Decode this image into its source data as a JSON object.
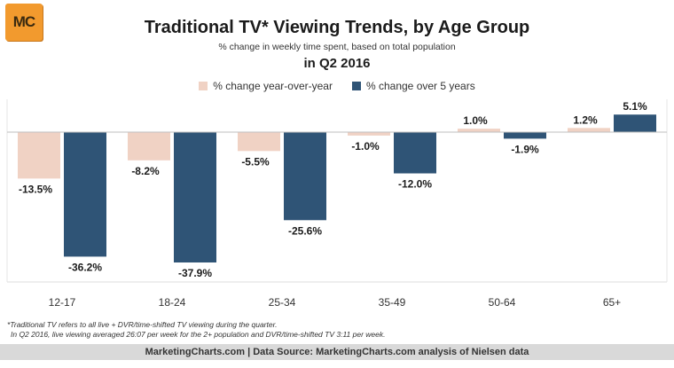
{
  "logo": {
    "text": "MC",
    "color": "#f29a2e"
  },
  "header": {
    "title": "Traditional TV* Viewing Trends, by Age Group",
    "subtitle": "% change in weekly time spent, based on total population",
    "subtitle2": "in Q2 2016"
  },
  "notes": {
    "line1": "*Traditional TV refers to all live + DVR/time-shifted TV viewing during the quarter.",
    "line2": "In Q2 2016, live viewing averaged 26:07 per week for the 2+ population and DVR/time-shifted TV 3:11 per week."
  },
  "footer": {
    "text": "MarketingCharts.com | Data Source: MarketingCharts.com analysis of Nielsen data"
  },
  "chart_data": {
    "type": "bar",
    "title": "Traditional TV* Viewing Trends, by Age Group",
    "categories": [
      "12-17",
      "18-24",
      "25-34",
      "35-49",
      "50-64",
      "65+"
    ],
    "series": [
      {
        "name": "% change year-over-year",
        "color": "#f0d2c4",
        "values": [
          -13.5,
          -8.2,
          -5.5,
          -1.0,
          1.0,
          1.2
        ]
      },
      {
        "name": "% change over 5 years",
        "color": "#2f5476",
        "values": [
          -36.2,
          -37.9,
          -25.6,
          -12.0,
          -1.9,
          5.1
        ]
      }
    ],
    "data_labels": [
      [
        "-13.5%",
        "-8.2%",
        "-5.5%",
        "-1.0%",
        "1.0%",
        "1.2%"
      ],
      [
        "-36.2%",
        "-37.9%",
        "-25.6%",
        "-12.0%",
        "-1.9%",
        "5.1%"
      ]
    ],
    "ylim": [
      -40,
      8
    ],
    "grid": false,
    "legend": "top-center"
  }
}
